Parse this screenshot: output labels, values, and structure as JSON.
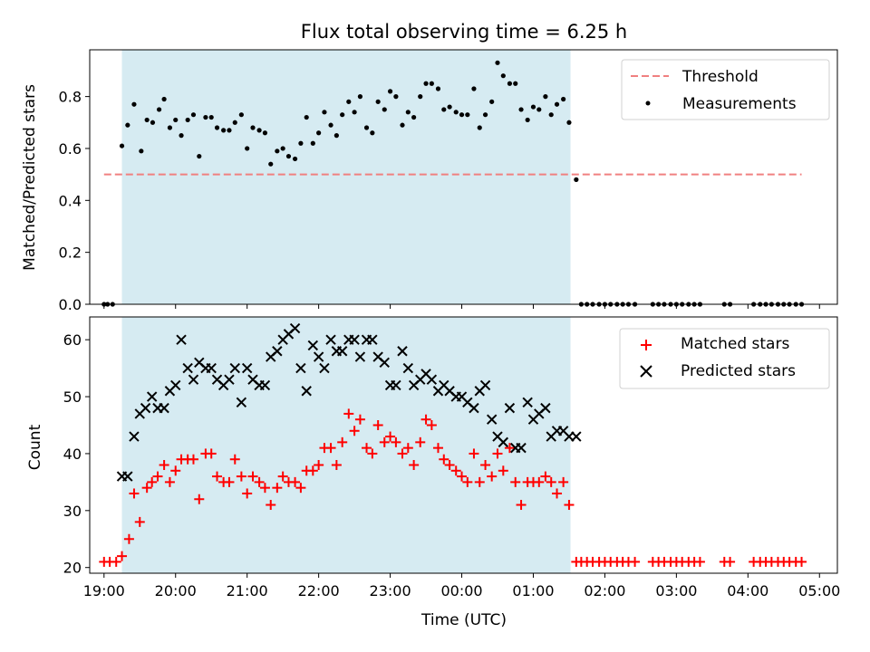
{
  "chart_data": [
    {
      "type": "scatter",
      "title": "Flux total observing time = 6.25 h",
      "xlabel": "",
      "ylabel": "Matched/Predicted stars",
      "xlim": [
        18.8,
        29.25
      ],
      "ylim": [
        0,
        0.98
      ],
      "yticks": [
        0.0,
        0.2,
        0.4,
        0.6,
        0.8
      ],
      "ytick_labels": [
        "0.0",
        "0.2",
        "0.4",
        "0.6",
        "0.8"
      ],
      "xticks": [
        19,
        20,
        21,
        22,
        23,
        24,
        25,
        26,
        27,
        28,
        29
      ],
      "shaded_region": [
        19.25,
        25.52
      ],
      "shaded_color": "#add8e6",
      "threshold": {
        "name": "Threshold",
        "value": 0.5,
        "x_range": [
          19.0,
          28.75
        ],
        "color": "#f08080"
      },
      "legend": {
        "position": "upper-right",
        "entries": [
          "Threshold",
          "Measurements"
        ]
      },
      "series": [
        {
          "name": "Measurements",
          "color": "#000000",
          "x": [
            19.0,
            19.05,
            19.12,
            19.25,
            19.33,
            19.42,
            19.52,
            19.6,
            19.68,
            19.77,
            19.84,
            19.92,
            20.0,
            20.08,
            20.17,
            20.25,
            20.33,
            20.42,
            20.5,
            20.58,
            20.67,
            20.75,
            20.83,
            20.92,
            21.0,
            21.08,
            21.17,
            21.25,
            21.33,
            21.42,
            21.5,
            21.58,
            21.67,
            21.75,
            21.83,
            21.92,
            22.0,
            22.08,
            22.17,
            22.25,
            22.33,
            22.42,
            22.5,
            22.58,
            22.67,
            22.75,
            22.83,
            22.92,
            23.0,
            23.08,
            23.17,
            23.25,
            23.33,
            23.42,
            23.5,
            23.58,
            23.67,
            23.75,
            23.83,
            23.92,
            24.0,
            24.08,
            24.17,
            24.25,
            24.33,
            24.42,
            24.5,
            24.58,
            24.67,
            24.75,
            24.83,
            24.92,
            25.0,
            25.08,
            25.17,
            25.25,
            25.33,
            25.42,
            25.5,
            25.6,
            25.67,
            25.75,
            25.83,
            25.92,
            26.0,
            26.08,
            26.17,
            26.25,
            26.33,
            26.42,
            26.67,
            26.75,
            26.83,
            26.92,
            27.0,
            27.08,
            27.17,
            27.25,
            27.33,
            27.67,
            27.75,
            28.08,
            28.17,
            28.25,
            28.33,
            28.42,
            28.5,
            28.58,
            28.67,
            28.75
          ],
          "y": [
            0.0,
            0.0,
            0.0,
            0.61,
            0.69,
            0.77,
            0.59,
            0.71,
            0.7,
            0.75,
            0.79,
            0.68,
            0.71,
            0.65,
            0.71,
            0.73,
            0.57,
            0.72,
            0.72,
            0.68,
            0.67,
            0.67,
            0.7,
            0.73,
            0.6,
            0.68,
            0.67,
            0.66,
            0.54,
            0.59,
            0.6,
            0.57,
            0.56,
            0.62,
            0.72,
            0.62,
            0.66,
            0.74,
            0.69,
            0.65,
            0.73,
            0.78,
            0.74,
            0.8,
            0.68,
            0.66,
            0.78,
            0.75,
            0.82,
            0.8,
            0.69,
            0.74,
            0.72,
            0.8,
            0.85,
            0.85,
            0.83,
            0.75,
            0.76,
            0.74,
            0.73,
            0.73,
            0.83,
            0.68,
            0.73,
            0.78,
            0.93,
            0.88,
            0.85,
            0.85,
            0.75,
            0.71,
            0.76,
            0.75,
            0.8,
            0.73,
            0.77,
            0.79,
            0.7,
            0.48,
            0.0,
            0.0,
            0.0,
            0.0,
            0.0,
            0.0,
            0.0,
            0.0,
            0.0,
            0.0,
            0.0,
            0.0,
            0.0,
            0.0,
            0.0,
            0.0,
            0.0,
            0.0,
            0.0,
            0.0,
            0.0,
            0.0,
            0.0,
            0.0,
            0.0,
            0.0,
            0.0,
            0.0,
            0.0,
            0.0
          ]
        }
      ]
    },
    {
      "type": "scatter",
      "title": "",
      "xlabel": "Time (UTC)",
      "ylabel": "Count",
      "xlim": [
        18.8,
        29.25
      ],
      "ylim": [
        19,
        64
      ],
      "yticks": [
        20,
        30,
        40,
        50,
        60
      ],
      "ytick_labels": [
        "20",
        "30",
        "40",
        "50",
        "60"
      ],
      "xticks": [
        19,
        20,
        21,
        22,
        23,
        24,
        25,
        26,
        27,
        28,
        29
      ],
      "xtick_labels": [
        "19:00",
        "20:00",
        "21:00",
        "22:00",
        "23:00",
        "00:00",
        "01:00",
        "02:00",
        "03:00",
        "04:00",
        "05:00"
      ],
      "shaded_region": [
        19.25,
        25.52
      ],
      "shaded_color": "#add8e6",
      "legend": {
        "position": "upper-right",
        "entries": [
          "Matched stars",
          "Predicted stars"
        ]
      },
      "series": [
        {
          "name": "Matched stars",
          "marker": "plus",
          "color": "#ff0000",
          "x": [
            19.0,
            19.08,
            19.17,
            19.25,
            19.35,
            19.42,
            19.5,
            19.6,
            19.67,
            19.75,
            19.84,
            19.92,
            20.0,
            20.08,
            20.17,
            20.25,
            20.33,
            20.42,
            20.5,
            20.58,
            20.67,
            20.75,
            20.83,
            20.92,
            21.0,
            21.08,
            21.17,
            21.25,
            21.33,
            21.42,
            21.5,
            21.58,
            21.67,
            21.75,
            21.83,
            21.92,
            22.0,
            22.08,
            22.17,
            22.25,
            22.33,
            22.42,
            22.5,
            22.58,
            22.67,
            22.75,
            22.83,
            22.92,
            23.0,
            23.08,
            23.17,
            23.25,
            23.33,
            23.42,
            23.5,
            23.58,
            23.67,
            23.75,
            23.83,
            23.92,
            24.0,
            24.08,
            24.17,
            24.25,
            24.33,
            24.42,
            24.5,
            24.58,
            24.67,
            24.75,
            24.83,
            24.92,
            25.0,
            25.08,
            25.17,
            25.25,
            25.33,
            25.42,
            25.5,
            25.6,
            25.67,
            25.75,
            25.83,
            25.92,
            26.0,
            26.08,
            26.17,
            26.25,
            26.33,
            26.42,
            26.67,
            26.75,
            26.83,
            26.92,
            27.0,
            27.08,
            27.17,
            27.25,
            27.33,
            27.67,
            27.75,
            28.08,
            28.17,
            28.25,
            28.33,
            28.42,
            28.5,
            28.58,
            28.67,
            28.75
          ],
          "y": [
            21,
            21,
            21,
            22,
            25,
            33,
            28,
            34,
            35,
            36,
            38,
            35,
            37,
            39,
            39,
            39,
            32,
            40,
            40,
            36,
            35,
            35,
            39,
            36,
            33,
            36,
            35,
            34,
            31,
            34,
            36,
            35,
            35,
            34,
            37,
            37,
            38,
            41,
            41,
            38,
            42,
            47,
            44,
            46,
            41,
            40,
            45,
            42,
            43,
            42,
            40,
            41,
            38,
            42,
            46,
            45,
            41,
            39,
            38,
            37,
            36,
            35,
            40,
            35,
            38,
            36,
            40,
            37,
            41,
            35,
            31,
            35,
            35,
            35,
            36,
            35,
            33,
            35,
            31,
            21,
            21,
            21,
            21,
            21,
            21,
            21,
            21,
            21,
            21,
            21,
            21,
            21,
            21,
            21,
            21,
            21,
            21,
            21,
            21,
            21,
            21,
            21,
            21,
            21,
            21,
            21,
            21,
            21,
            21,
            21
          ]
        },
        {
          "name": "Predicted stars",
          "marker": "x",
          "color": "#000000",
          "x": [
            19.25,
            19.33,
            19.42,
            19.5,
            19.58,
            19.67,
            19.75,
            19.84,
            19.92,
            20.0,
            20.08,
            20.17,
            20.25,
            20.33,
            20.42,
            20.5,
            20.58,
            20.67,
            20.75,
            20.83,
            20.92,
            21.0,
            21.08,
            21.17,
            21.25,
            21.33,
            21.42,
            21.5,
            21.58,
            21.67,
            21.75,
            21.83,
            21.92,
            22.0,
            22.08,
            22.17,
            22.25,
            22.33,
            22.42,
            22.5,
            22.58,
            22.67,
            22.75,
            22.83,
            22.92,
            23.0,
            23.08,
            23.17,
            23.25,
            23.33,
            23.42,
            23.5,
            23.58,
            23.67,
            23.75,
            23.83,
            23.92,
            24.0,
            24.08,
            24.17,
            24.25,
            24.33,
            24.42,
            24.5,
            24.58,
            24.67,
            24.75,
            24.83,
            24.92,
            25.0,
            25.08,
            25.17,
            25.25,
            25.33,
            25.42,
            25.5,
            25.6
          ],
          "y": [
            36,
            36,
            43,
            47,
            48,
            50,
            48,
            48,
            51,
            52,
            60,
            55,
            53,
            56,
            55,
            55,
            53,
            52,
            53,
            55,
            49,
            55,
            53,
            52,
            52,
            57,
            58,
            60,
            61,
            62,
            55,
            51,
            59,
            57,
            55,
            60,
            58,
            58,
            60,
            60,
            57,
            60,
            60,
            57,
            56,
            52,
            52,
            58,
            55,
            52,
            53,
            54,
            53,
            51,
            52,
            51,
            50,
            50,
            49,
            48,
            51,
            52,
            46,
            43,
            42,
            48,
            41,
            41,
            49,
            46,
            47,
            48,
            43,
            44,
            44,
            43,
            43
          ]
        }
      ]
    }
  ]
}
